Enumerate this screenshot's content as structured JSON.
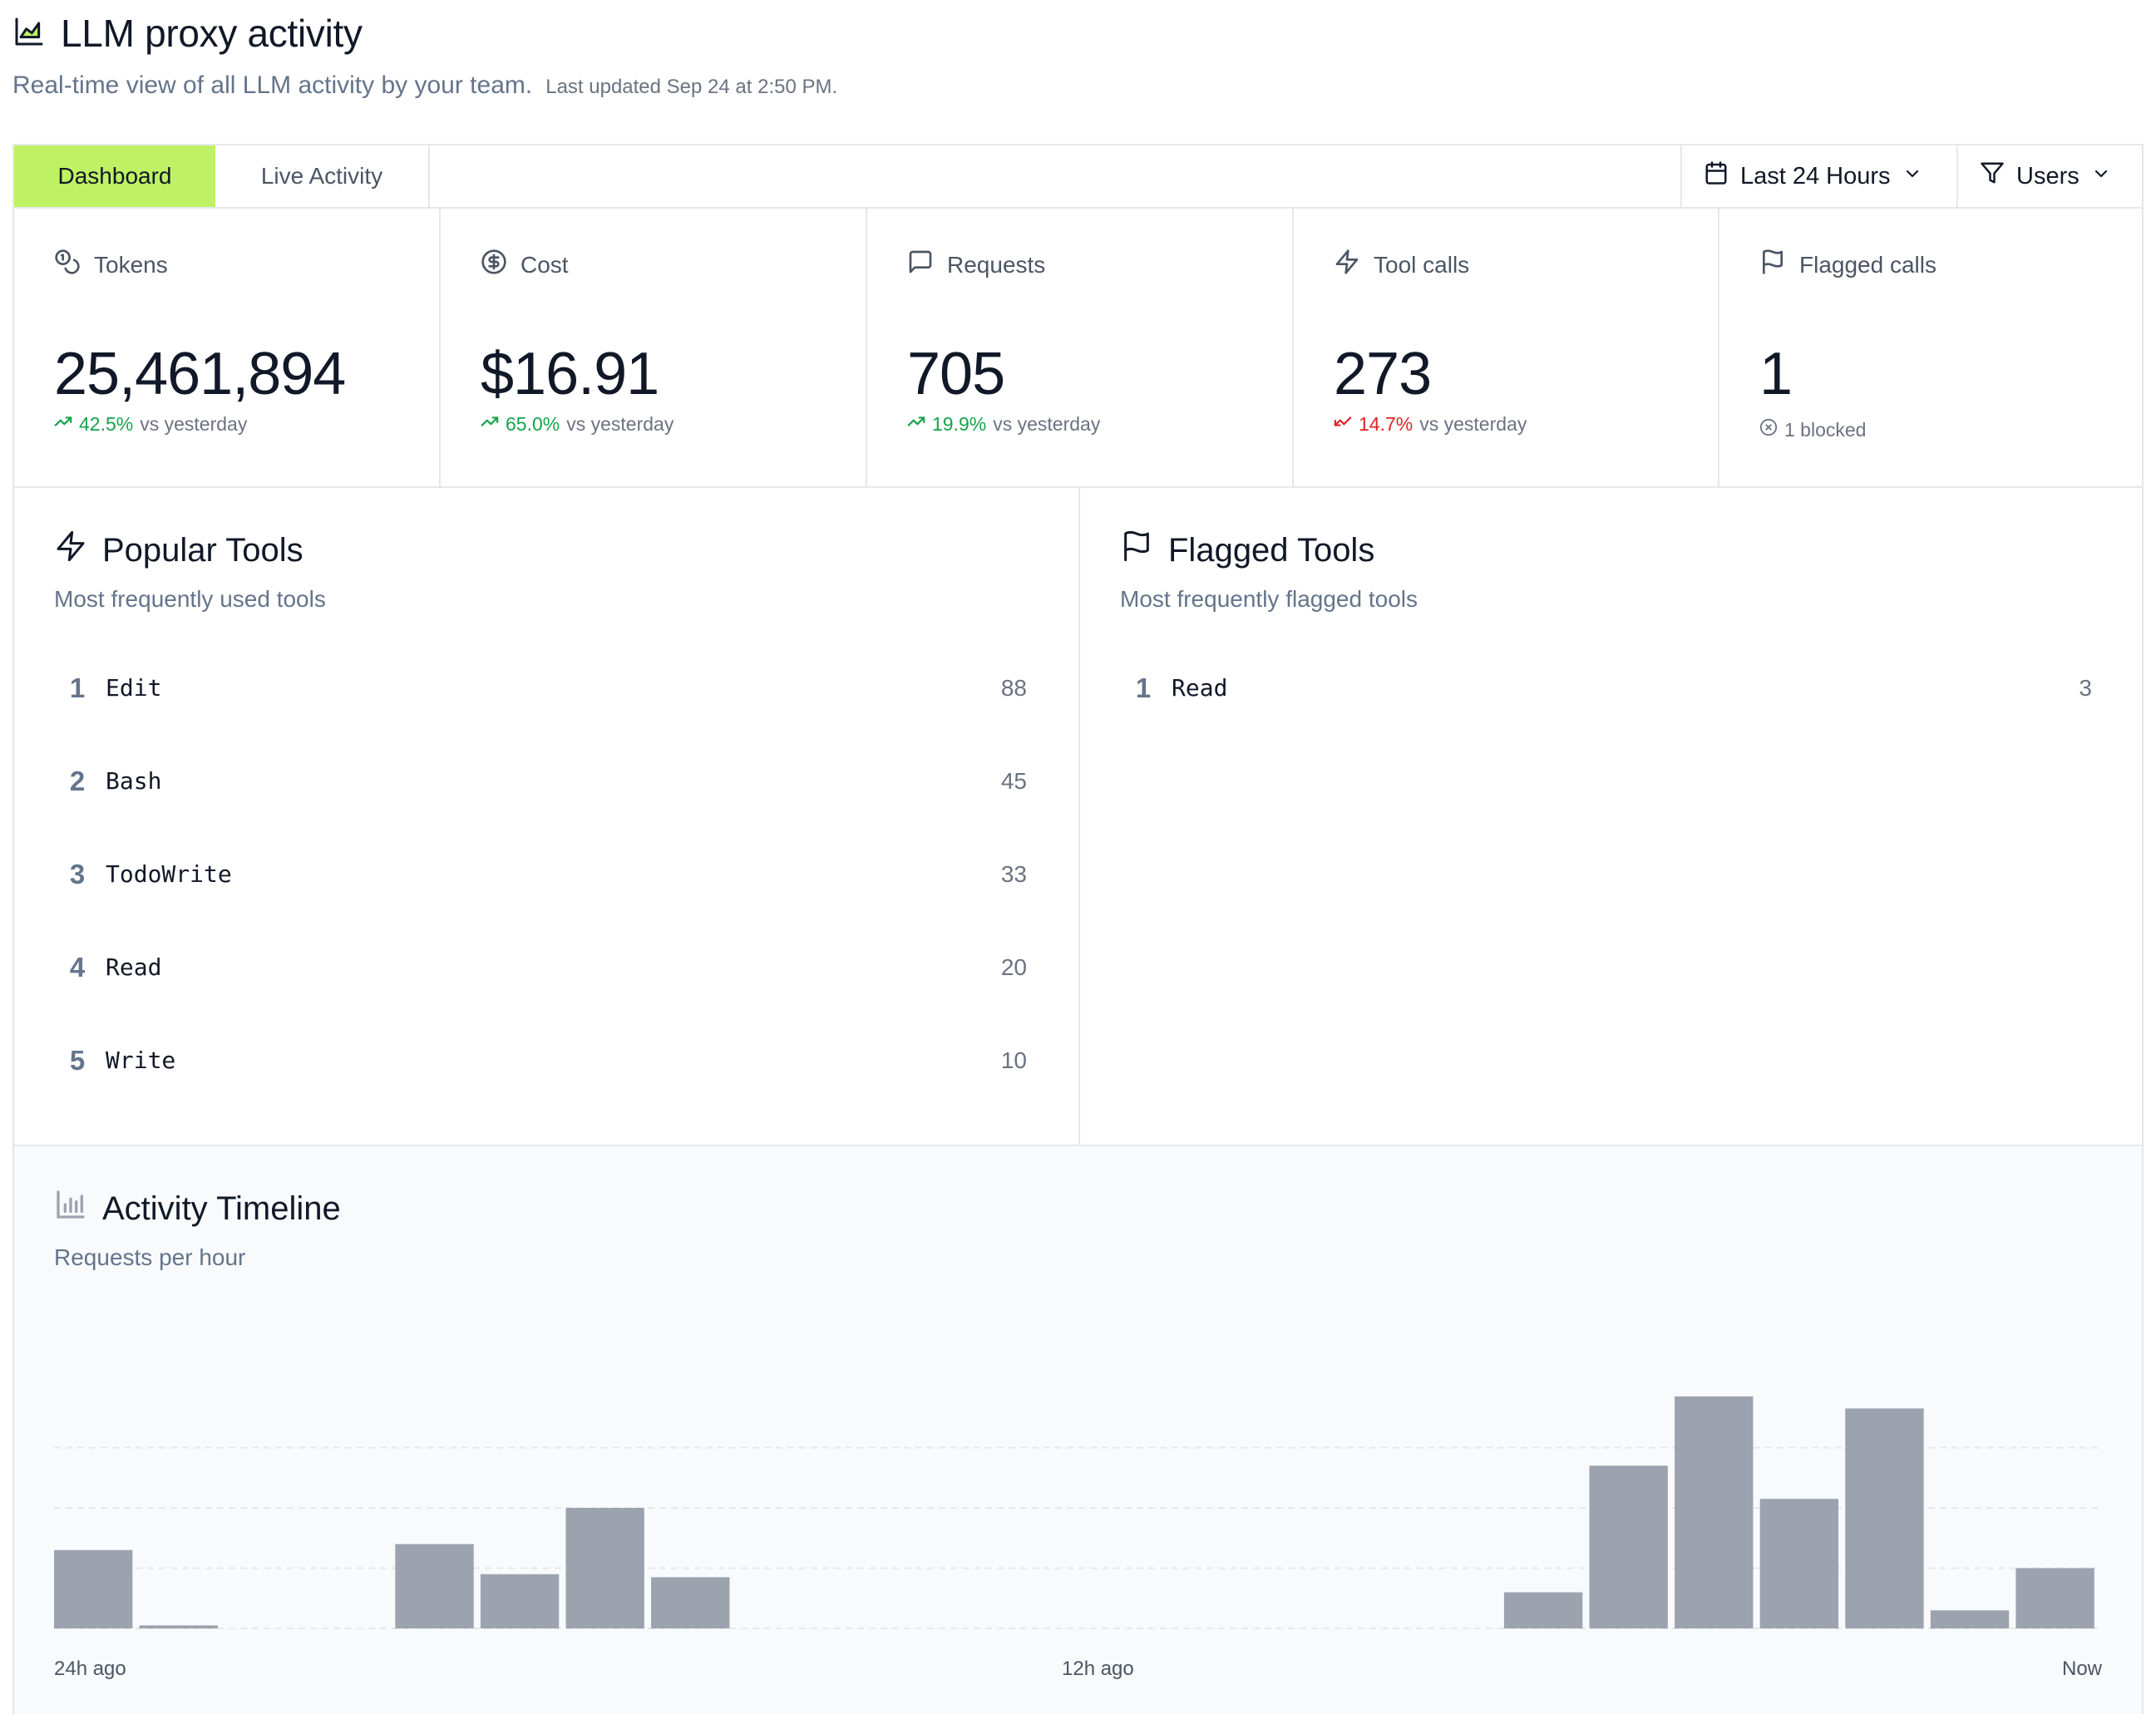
{
  "header": {
    "title": "LLM proxy activity",
    "subtitle": "Real-time view of all LLM activity by your team.",
    "last_updated": "Last updated Sep 24 at 2:50 PM."
  },
  "toolbar": {
    "tabs": [
      {
        "label": "Dashboard",
        "active": true
      },
      {
        "label": "Live Activity",
        "active": false
      }
    ],
    "time_range": "Last 24 Hours",
    "filter_label": "Users"
  },
  "stats": [
    {
      "label": "Tokens",
      "icon": "coins-icon",
      "value": "25,461,894",
      "delta": "42.5%",
      "delta_suffix": "vs yesterday",
      "trend": "up"
    },
    {
      "label": "Cost",
      "icon": "dollar-circle-icon",
      "value": "$16.91",
      "delta": "65.0%",
      "delta_suffix": "vs yesterday",
      "trend": "up"
    },
    {
      "label": "Requests",
      "icon": "message-square-icon",
      "value": "705",
      "delta": "19.9%",
      "delta_suffix": "vs yesterday",
      "trend": "up"
    },
    {
      "label": "Tool calls",
      "icon": "zap-icon",
      "value": "273",
      "delta": "14.7%",
      "delta_suffix": "vs yesterday",
      "trend": "down"
    },
    {
      "label": "Flagged calls",
      "icon": "flag-icon",
      "value": "1",
      "note": "1 blocked"
    }
  ],
  "popular_tools": {
    "title": "Popular Tools",
    "subtitle": "Most frequently used tools",
    "items": [
      {
        "rank": "1",
        "name": "Edit",
        "count": "88"
      },
      {
        "rank": "2",
        "name": "Bash",
        "count": "45"
      },
      {
        "rank": "3",
        "name": "TodoWrite",
        "count": "33"
      },
      {
        "rank": "4",
        "name": "Read",
        "count": "20"
      },
      {
        "rank": "5",
        "name": "Write",
        "count": "10"
      }
    ]
  },
  "flagged_tools": {
    "title": "Flagged Tools",
    "subtitle": "Most frequently flagged tools",
    "items": [
      {
        "rank": "1",
        "name": "Read",
        "count": "3"
      }
    ]
  },
  "timeline": {
    "title": "Activity Timeline",
    "subtitle": "Requests per hour",
    "axis_labels": [
      "24h ago",
      "12h ago",
      "Now"
    ]
  },
  "colors": {
    "accent": "#bef264",
    "up": "#16a34a",
    "down": "#dc2626",
    "bar": "#9ca3af"
  },
  "chart_data": {
    "type": "bar",
    "categories": [
      "h1",
      "h2",
      "h3",
      "h4",
      "h5",
      "h6",
      "h7",
      "h8",
      "h9",
      "h10",
      "h11",
      "h12",
      "h13",
      "h14",
      "h15",
      "h16",
      "h17",
      "h18",
      "h19",
      "h20",
      "h21",
      "h22",
      "h23",
      "h24"
    ],
    "values": [
      13,
      0.5,
      0,
      0,
      14,
      9,
      20,
      8.5,
      0,
      0,
      0,
      0,
      0,
      0,
      0,
      0,
      0,
      6,
      27,
      38.5,
      21.5,
      36.5,
      3,
      10
    ],
    "title": "Activity Timeline",
    "ylabel": "",
    "xlabel": "",
    "ylim": [
      0,
      40
    ],
    "grid": true
  }
}
